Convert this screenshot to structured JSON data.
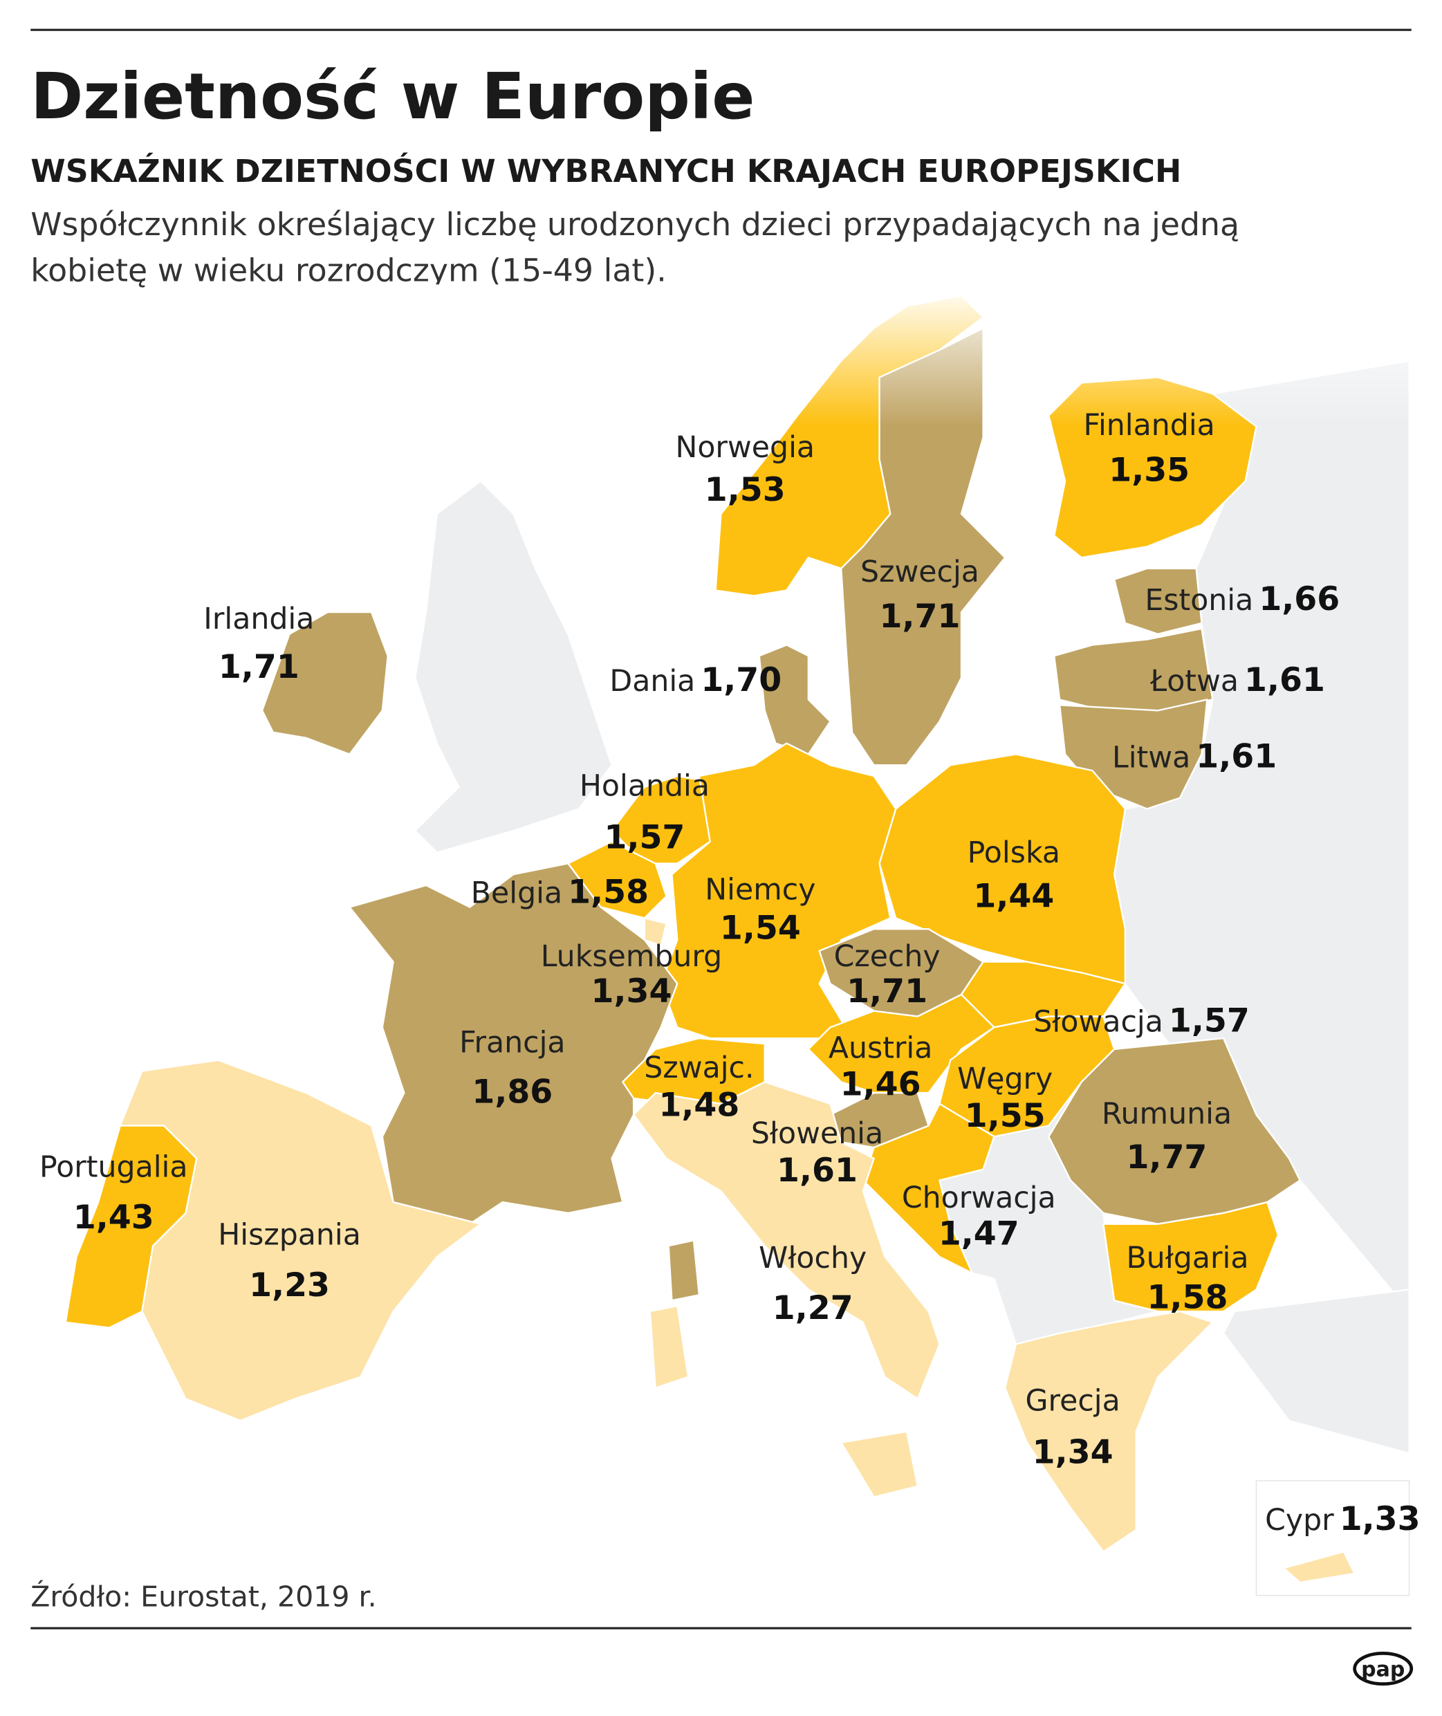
{
  "header": {
    "title": "Dzietność w Europie",
    "subtitle": "WSKAŹNIK DZIETNOŚCI W WYBRANYCH KRAJACH EUROPEJSKICH",
    "description": [
      "Współczynnik określający liczbę urodzonych dzieci przypadających na jedną",
      "kobietę  w wieku rozrodczym (15-49 lat)."
    ]
  },
  "countries": [
    {
      "name": "Norwegia",
      "value": "1,53",
      "color": "#fdc010"
    },
    {
      "name": "Finlandia",
      "value": "1,35",
      "color": "#fdc010"
    },
    {
      "name": "Szwecja",
      "value": "1,71",
      "color": "#bfa362"
    },
    {
      "name": "Irlandia",
      "value": "1,71",
      "color": "#bfa362"
    },
    {
      "name": "Estonia",
      "value": "1,66",
      "color": "#bfa362"
    },
    {
      "name": "Dania",
      "value": "1,70",
      "color": "#bfa362"
    },
    {
      "name": "Łotwa",
      "value": "1,61",
      "color": "#bfa362"
    },
    {
      "name": "Litwa",
      "value": "1,61",
      "color": "#bfa362"
    },
    {
      "name": "Holandia",
      "value": "1,57",
      "color": "#fdc010"
    },
    {
      "name": "Polska",
      "value": "1,44",
      "color": "#fdc010"
    },
    {
      "name": "Belgia",
      "value": "1,58",
      "color": "#fdc010"
    },
    {
      "name": "Niemcy",
      "value": "1,54",
      "color": "#fdc010"
    },
    {
      "name": "Luksemburg",
      "value": "1,34",
      "color": "#fde3a8"
    },
    {
      "name": "Czechy",
      "value": "1,71",
      "color": "#bfa362"
    },
    {
      "name": "Słowacja",
      "value": "1,57",
      "color": "#fdc010"
    },
    {
      "name": "Francja",
      "value": "1,86",
      "color": "#bfa362"
    },
    {
      "name": "Austria",
      "value": "1,46",
      "color": "#fdc010"
    },
    {
      "name": "Szwajc.",
      "value": "1,48",
      "color": "#fdc010"
    },
    {
      "name": "Węgry",
      "value": "1,55",
      "color": "#fdc010"
    },
    {
      "name": "Rumunia",
      "value": "1,77",
      "color": "#bfa362"
    },
    {
      "name": "Słowenia",
      "value": "1,61",
      "color": "#bfa362"
    },
    {
      "name": "Portugalia",
      "value": "1,43",
      "color": "#fdc010"
    },
    {
      "name": "Chorwacja",
      "value": "1,47",
      "color": "#fdc010"
    },
    {
      "name": "Hiszpania",
      "value": "1,23",
      "color": "#fde3a8"
    },
    {
      "name": "Bułgaria",
      "value": "1,58",
      "color": "#fdc010"
    },
    {
      "name": "Włochy",
      "value": "1,27",
      "color": "#fde3a8"
    },
    {
      "name": "Grecja",
      "value": "1,34",
      "color": "#fde3a8"
    },
    {
      "name": "Cypr",
      "value": "1,33",
      "color": "#fde3a8"
    }
  ],
  "footer": {
    "source": "Źródło: Eurostat, 2019 r.",
    "logo": "pap"
  }
}
